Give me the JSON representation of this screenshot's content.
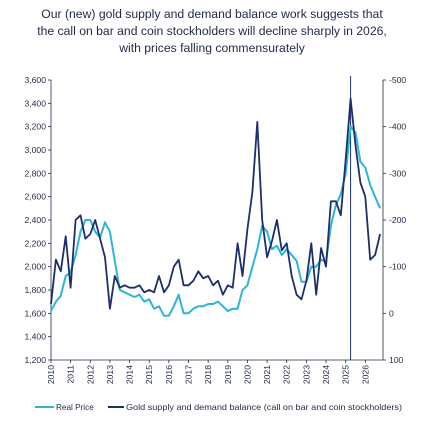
{
  "title_lines": [
    "Our (new) gold supply and demand balance work suggests that",
    "the call on bar and coin stockholders will decline sharply in 2026,",
    "with prices falling commensurately"
  ],
  "colors": {
    "real_price": "#29b6d9",
    "balance": "#1d2f6b",
    "axis": "#1f2a44",
    "marker": "#1d2f6b"
  },
  "chart_data": {
    "type": "line",
    "title": "Our (new) gold supply and demand balance work suggests that the call on bar and coin stockholders will decline sharply in 2026, with prices falling commensurately",
    "xlabel": "",
    "ylabel": "",
    "x_ticks": [
      "2010",
      "2011",
      "2012",
      "2013",
      "2014",
      "2015",
      "2016",
      "2017",
      "2018",
      "2019",
      "2020",
      "2021",
      "2022",
      "2023",
      "2024",
      "2025",
      "2026"
    ],
    "xlim": [
      2010,
      2026.9
    ],
    "y_left": {
      "ticks": [
        "3,600",
        "3,400",
        "3,200",
        "3,000",
        "2,800",
        "2,600",
        "2,400",
        "2,200",
        "2,000",
        "1,800",
        "1,600",
        "1,400",
        "1,200"
      ],
      "ylim": [
        1200,
        3600
      ]
    },
    "y_right": {
      "ticks": [
        "-500",
        "-400",
        "-300",
        "-200",
        "-100",
        "0",
        "100"
      ],
      "ylim": [
        -500,
        100
      ],
      "inverted": true
    },
    "marker_x": 2025.25,
    "legend_position": "bottom",
    "series": [
      {
        "name": "Real Price",
        "axis": "left",
        "x": [
          2010,
          2010.25,
          2010.5,
          2010.75,
          2011,
          2011.25,
          2011.5,
          2011.75,
          2012,
          2012.25,
          2012.5,
          2012.75,
          2013,
          2013.25,
          2013.5,
          2013.75,
          2014,
          2014.25,
          2014.5,
          2014.75,
          2015,
          2015.25,
          2015.5,
          2015.75,
          2016,
          2016.25,
          2016.5,
          2016.75,
          2017,
          2017.25,
          2017.5,
          2017.75,
          2018,
          2018.25,
          2018.5,
          2018.75,
          2019,
          2019.25,
          2019.5,
          2019.75,
          2020,
          2020.25,
          2020.5,
          2020.75,
          2021,
          2021.25,
          2021.5,
          2021.75,
          2022,
          2022.25,
          2022.5,
          2022.75,
          2023,
          2023.25,
          2023.5,
          2023.75,
          2024,
          2024.25,
          2024.5,
          2024.75,
          2025,
          2025.25,
          2025.5,
          2025.75,
          2026,
          2026.25,
          2026.5,
          2026.75
        ],
        "values": [
          1620,
          1700,
          1750,
          1920,
          1950,
          2100,
          2300,
          2400,
          2400,
          2300,
          2250,
          2380,
          2300,
          2050,
          1800,
          1780,
          1760,
          1740,
          1760,
          1700,
          1720,
          1640,
          1660,
          1580,
          1580,
          1660,
          1760,
          1600,
          1600,
          1640,
          1660,
          1660,
          1680,
          1680,
          1700,
          1660,
          1620,
          1640,
          1640,
          1800,
          1840,
          2000,
          2150,
          2350,
          2300,
          2150,
          2180,
          2100,
          2150,
          2100,
          2050,
          1870,
          1870,
          2000,
          2000,
          2060,
          2040,
          2350,
          2530,
          2620,
          2800,
          3200,
          3150,
          2900,
          2850,
          2700,
          2600,
          2500
        ]
      },
      {
        "name": "Gold supply and demand balance (call on bar and coin stockholders)",
        "axis": "right",
        "x": [
          2010,
          2010.25,
          2010.5,
          2010.75,
          2011,
          2011.25,
          2011.5,
          2011.75,
          2012,
          2012.25,
          2012.5,
          2012.75,
          2013,
          2013.25,
          2013.5,
          2013.75,
          2014,
          2014.25,
          2014.5,
          2014.75,
          2015,
          2015.25,
          2015.5,
          2015.75,
          2016,
          2016.25,
          2016.5,
          2016.75,
          2017,
          2017.25,
          2017.5,
          2017.75,
          2018,
          2018.25,
          2018.5,
          2018.75,
          2019,
          2019.25,
          2019.5,
          2019.75,
          2020,
          2020.25,
          2020.5,
          2020.75,
          2021,
          2021.25,
          2021.5,
          2021.75,
          2022,
          2022.25,
          2022.5,
          2022.75,
          2023,
          2023.25,
          2023.5,
          2023.75,
          2024,
          2024.25,
          2024.5,
          2024.75,
          2025,
          2025.25,
          2025.5,
          2025.75,
          2026,
          2026.25,
          2026.5,
          2026.75
        ],
        "values": [
          -20,
          -115,
          -90,
          -165,
          -55,
          -200,
          -210,
          -160,
          -170,
          -200,
          -160,
          -120,
          -10,
          -80,
          -55,
          -60,
          -55,
          -55,
          -60,
          -45,
          -50,
          -45,
          -80,
          -45,
          -60,
          -100,
          -115,
          -60,
          -60,
          -70,
          -90,
          -75,
          -80,
          -60,
          -70,
          -40,
          -60,
          -55,
          -150,
          -80,
          -180,
          -260,
          -410,
          -200,
          -120,
          -155,
          -200,
          -135,
          -150,
          -80,
          -40,
          -30,
          -70,
          -150,
          -40,
          -140,
          -100,
          -240,
          -240,
          -210,
          -330,
          -460,
          -360,
          -280,
          -250,
          -115,
          -125,
          -170
        ]
      }
    ]
  }
}
